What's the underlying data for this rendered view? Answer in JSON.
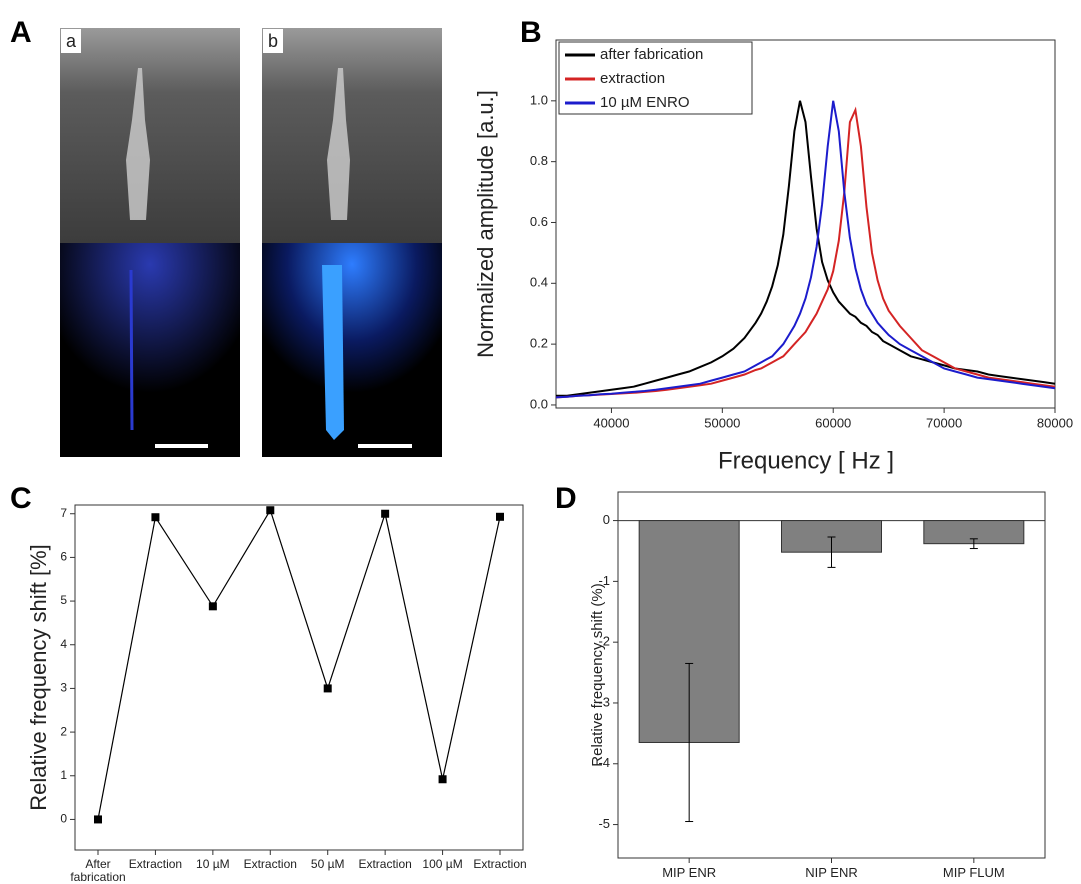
{
  "panel_a": {
    "label": "A",
    "image_labels": [
      "a",
      "b"
    ]
  },
  "chart_data": [
    {
      "type": "line",
      "panel_label": "B",
      "x_label": "Frequency [ Hz ]",
      "y_label": "Normalized amplitude [a.u.]",
      "x": [
        35000,
        36000,
        37000,
        38000,
        39000,
        40000,
        41000,
        42000,
        43000,
        44000,
        45000,
        46000,
        47000,
        48000,
        49000,
        50000,
        51000,
        52000,
        53000,
        53500,
        54000,
        54500,
        55000,
        55500,
        56000,
        56500,
        57000,
        57500,
        58000,
        58500,
        59000,
        59500,
        60000,
        60500,
        61000,
        61500,
        62000,
        62500,
        63000,
        63500,
        64000,
        64500,
        65000,
        66000,
        67000,
        68000,
        69000,
        70000,
        71000,
        72000,
        73000,
        74000,
        75000,
        76000,
        77000,
        78000,
        79000,
        80000
      ],
      "series": [
        {
          "name": "after fabrication",
          "color": "#000000",
          "values": [
            0.03,
            0.03,
            0.035,
            0.04,
            0.045,
            0.05,
            0.055,
            0.06,
            0.07,
            0.08,
            0.09,
            0.1,
            0.11,
            0.125,
            0.14,
            0.16,
            0.185,
            0.22,
            0.27,
            0.3,
            0.34,
            0.39,
            0.46,
            0.56,
            0.72,
            0.9,
            1.0,
            0.93,
            0.75,
            0.58,
            0.47,
            0.41,
            0.37,
            0.34,
            0.32,
            0.3,
            0.29,
            0.27,
            0.26,
            0.24,
            0.23,
            0.21,
            0.2,
            0.18,
            0.16,
            0.15,
            0.14,
            0.13,
            0.12,
            0.115,
            0.11,
            0.1,
            0.095,
            0.09,
            0.085,
            0.08,
            0.075,
            0.07
          ]
        },
        {
          "name": "extraction",
          "color": "#d42424",
          "values": [
            0.025,
            0.027,
            0.03,
            0.032,
            0.034,
            0.036,
            0.038,
            0.04,
            0.043,
            0.046,
            0.05,
            0.055,
            0.06,
            0.065,
            0.07,
            0.08,
            0.09,
            0.1,
            0.115,
            0.12,
            0.13,
            0.14,
            0.15,
            0.16,
            0.18,
            0.2,
            0.22,
            0.24,
            0.27,
            0.3,
            0.34,
            0.38,
            0.44,
            0.54,
            0.7,
            0.93,
            0.97,
            0.85,
            0.65,
            0.5,
            0.41,
            0.35,
            0.31,
            0.26,
            0.22,
            0.18,
            0.16,
            0.14,
            0.12,
            0.11,
            0.1,
            0.09,
            0.085,
            0.08,
            0.075,
            0.07,
            0.065,
            0.06
          ]
        },
        {
          "name": "10 µM ENRO",
          "color": "#1c1ccc",
          "values": [
            0.025,
            0.027,
            0.03,
            0.032,
            0.035,
            0.037,
            0.04,
            0.043,
            0.046,
            0.05,
            0.055,
            0.06,
            0.065,
            0.07,
            0.08,
            0.09,
            0.1,
            0.11,
            0.13,
            0.14,
            0.15,
            0.16,
            0.18,
            0.2,
            0.23,
            0.26,
            0.3,
            0.35,
            0.42,
            0.52,
            0.66,
            0.85,
            1.0,
            0.9,
            0.7,
            0.55,
            0.45,
            0.38,
            0.33,
            0.3,
            0.27,
            0.25,
            0.23,
            0.2,
            0.18,
            0.16,
            0.14,
            0.12,
            0.11,
            0.1,
            0.09,
            0.085,
            0.08,
            0.075,
            0.07,
            0.065,
            0.06,
            0.055
          ]
        }
      ],
      "xlim": [
        35000,
        80000
      ],
      "xticks": [
        40000,
        50000,
        60000,
        70000,
        80000
      ],
      "ylim": [
        -0.01,
        1.2
      ],
      "yticks": [
        {
          "value": 0,
          "label": "0.0"
        },
        0.2,
        0.4,
        0.6,
        0.8,
        {
          "value": 1,
          "label": "1.0"
        }
      ],
      "legend": "upper left"
    },
    {
      "type": "line",
      "panel_label": "C",
      "y_label": "Relative frequency shift [%]",
      "categories": [
        "After fabrication",
        "Extraction",
        "10 µM",
        "Extraction",
        "50 µM",
        "Extraction",
        "100 µM",
        "Extraction"
      ],
      "values": [
        0,
        6.92,
        4.88,
        7.08,
        3.0,
        7.0,
        0.92,
        6.93
      ],
      "color": "#000000",
      "ylim": [
        -0.7,
        7.2
      ],
      "yticks": [
        0,
        1,
        2,
        3,
        4,
        5,
        6,
        7
      ]
    },
    {
      "type": "bar",
      "panel_label": "D",
      "y_label": "Relative frequency shift (%)",
      "categories": [
        "MIP ENR",
        "NIP ENR",
        "MIP FLUM"
      ],
      "values": [
        -3.65,
        -0.52,
        -0.38
      ],
      "errors": [
        1.3,
        0.25,
        0.08
      ],
      "color": "#808080",
      "ylim": [
        -5.55,
        0.47
      ],
      "yticks": [
        0,
        -1,
        -2,
        -3,
        -4,
        -5
      ]
    }
  ]
}
